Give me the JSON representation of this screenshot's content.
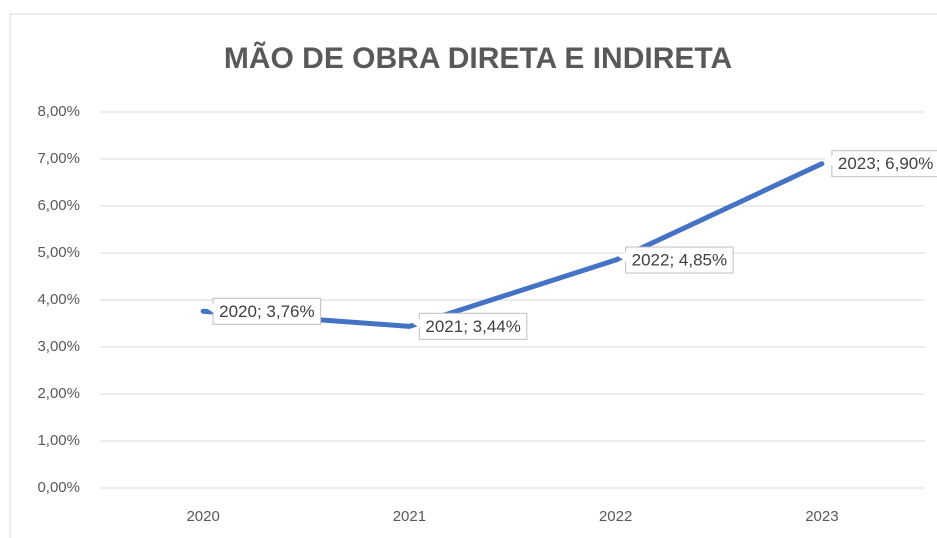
{
  "chart_data": {
    "type": "line",
    "title": "MÃO DE OBRA DIRETA E INDIRETA",
    "categories": [
      "2020",
      "2021",
      "2022",
      "2023"
    ],
    "series": [
      {
        "name": "MÃO DE OBRA DIRETA E INDIRETA",
        "color": "#4472c4",
        "values": [
          3.76,
          3.44,
          4.85,
          6.9
        ],
        "value_labels": [
          "2020; 3,76%",
          "2021; 3,44%",
          "2022; 4,85%",
          "2023; 6,90%"
        ]
      }
    ],
    "ylim": [
      0,
      8
    ],
    "yticks": [
      {
        "value": 0,
        "label": "0,00%"
      },
      {
        "value": 1,
        "label": "1,00%"
      },
      {
        "value": 2,
        "label": "2,00%"
      },
      {
        "value": 3,
        "label": "3,00%"
      },
      {
        "value": 4,
        "label": "4,00%"
      },
      {
        "value": 5,
        "label": "5,00%"
      },
      {
        "value": 6,
        "label": "6,00%"
      },
      {
        "value": 7,
        "label": "7,00%"
      },
      {
        "value": 8,
        "label": "8,00%"
      }
    ],
    "grid": true
  }
}
